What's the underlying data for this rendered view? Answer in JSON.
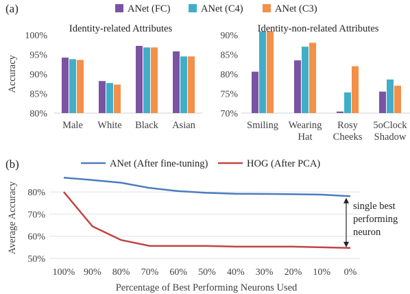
{
  "panel_a_label": "(a)",
  "panel_b_label": "(b)",
  "chart_data": [
    {
      "type": "bar",
      "title": "Identity-related Attributes",
      "ylabel": "Accuracy",
      "ylim": [
        80,
        100
      ],
      "yticks": [
        "80%",
        "85%",
        "90%",
        "95%",
        "100%"
      ],
      "categories": [
        "Male",
        "White",
        "Black",
        "Asian"
      ],
      "series": [
        {
          "name": "ANet (FC)",
          "color": "#7a54a3",
          "values": [
            94.2,
            88.2,
            97.2,
            95.8
          ]
        },
        {
          "name": "ANet (C4)",
          "color": "#41aec7",
          "values": [
            93.8,
            87.7,
            96.8,
            94.5
          ]
        },
        {
          "name": "ANet (C3)",
          "color": "#f39049",
          "values": [
            93.6,
            87.3,
            96.8,
            94.5
          ]
        }
      ],
      "legend": "top"
    },
    {
      "type": "bar",
      "title": "Identity-non-related Attributes",
      "ylim": [
        70,
        90
      ],
      "yticks": [
        "70%",
        "75%",
        "80%",
        "85%",
        "90%"
      ],
      "categories": [
        [
          "Smiling"
        ],
        [
          "Wearing",
          "Hat"
        ],
        [
          "Rosy",
          "Cheeks"
        ],
        [
          "5oClock",
          "Shadow"
        ]
      ],
      "series": [
        {
          "name": "ANet (FC)",
          "color": "#7a54a3",
          "values": [
            80.6,
            83.5,
            70.4,
            75.5
          ]
        },
        {
          "name": "ANet (C4)",
          "color": "#41aec7",
          "values": [
            90.9,
            87.0,
            75.3,
            78.6
          ]
        },
        {
          "name": "ANet (C3)",
          "color": "#f39049",
          "values": [
            90.9,
            88.0,
            82.0,
            77.0
          ]
        }
      ]
    },
    {
      "type": "line",
      "xlabel": "Percentage of Best Performing Neurons Used",
      "ylabel": "Average Accuracy",
      "ylim": [
        50,
        85
      ],
      "yticks": [
        "50%",
        "60%",
        "70%",
        "80%"
      ],
      "x": [
        "100%",
        "90%",
        "80%",
        "70%",
        "60%",
        "50%",
        "40%",
        "30%",
        "20%",
        "10%",
        "0%"
      ],
      "series": [
        {
          "name": "ANet (After fine-tuning)",
          "color": "#4a7cbf",
          "values": [
            86.5,
            85.4,
            84.2,
            81.8,
            80.4,
            79.6,
            79.2,
            79.1,
            79.0,
            78.8,
            78.1
          ]
        },
        {
          "name": "HOG (After PCA)",
          "color": "#c04444",
          "values": [
            80.0,
            64.5,
            58.3,
            55.6,
            55.6,
            55.6,
            55.3,
            55.3,
            55.3,
            55.0,
            54.7
          ]
        }
      ],
      "legend": "top",
      "annotation": [
        "single best",
        "performing",
        "neuron"
      ]
    }
  ]
}
